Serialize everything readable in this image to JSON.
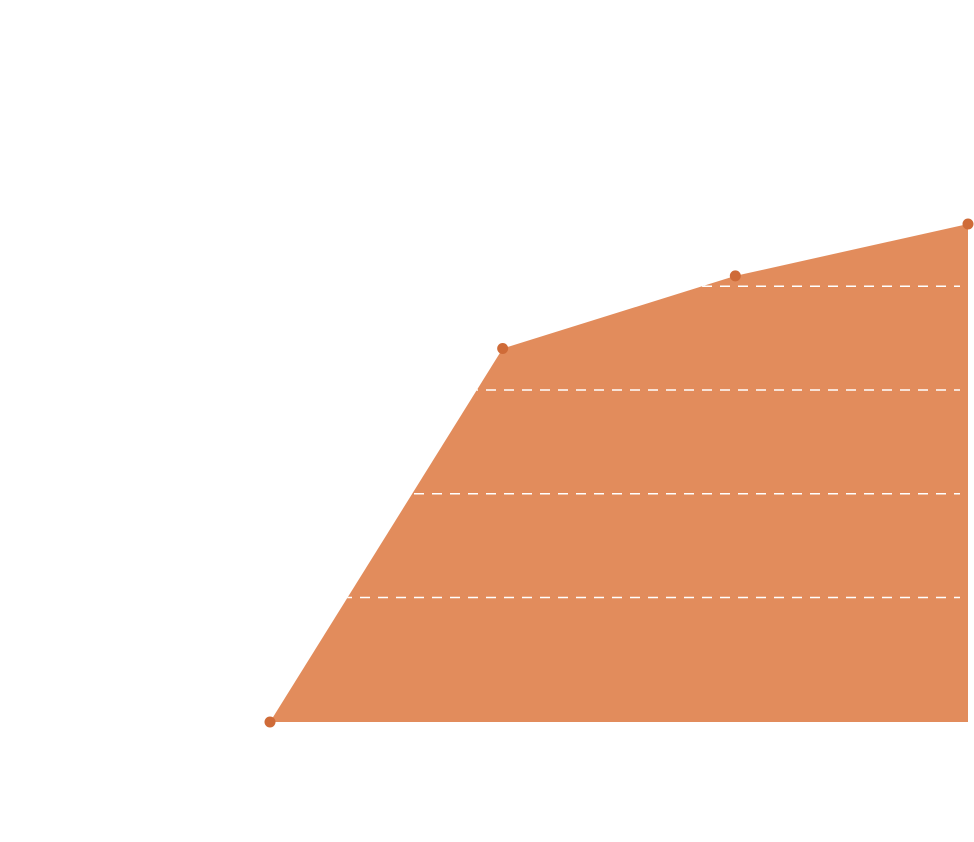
{
  "chart_data": {
    "type": "area",
    "x": [
      0,
      1,
      2,
      3
    ],
    "values": [
      0,
      72,
      86,
      96
    ],
    "ylim": [
      0,
      100
    ],
    "grid": true,
    "grid_style": "dashed",
    "grid_values": [
      24,
      44,
      64,
      84
    ],
    "legend": "none",
    "fill_color": "#e28c5c",
    "point_color": "#cf6b38",
    "grid_color": "#ffffff"
  }
}
